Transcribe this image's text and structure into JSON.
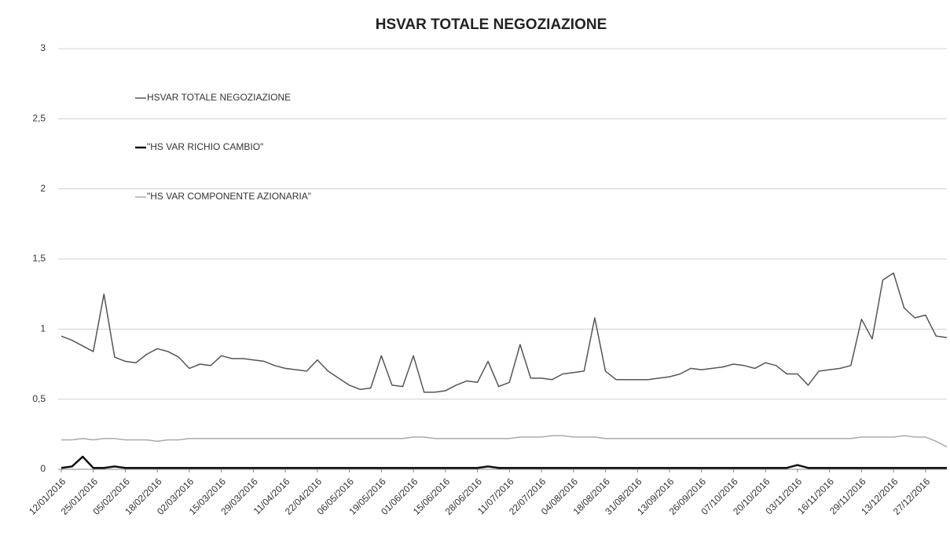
{
  "chart_data": {
    "type": "line",
    "title": "HSVAR TOTALE NEGOZIAZIONE",
    "categories": [
      "12/01/2016",
      null,
      null,
      "25/01/2016",
      null,
      null,
      "05/02/2016",
      null,
      null,
      "18/02/2016",
      null,
      null,
      "02/03/2016",
      null,
      null,
      "15/03/2016",
      null,
      null,
      "29/03/2016",
      null,
      null,
      "11/04/2016",
      null,
      null,
      "22/04/2016",
      null,
      null,
      "06/05/2016",
      null,
      null,
      "19/05/2016",
      null,
      null,
      "01/06/2016",
      null,
      null,
      "15/06/2016",
      null,
      null,
      "28/06/2016",
      null,
      null,
      "11/07/2016",
      null,
      null,
      "22/07/2016",
      null,
      null,
      "04/08/2016",
      null,
      null,
      "18/08/2016",
      null,
      null,
      "31/08/2016",
      null,
      null,
      "13/09/2016",
      null,
      null,
      "26/09/2016",
      null,
      null,
      "07/10/2016",
      null,
      null,
      "20/10/2016",
      null,
      null,
      "03/11/2016",
      null,
      null,
      "16/11/2016",
      null,
      null,
      "29/11/2016",
      null,
      null,
      "13/12/2016",
      null,
      null,
      "27/12/2016",
      null,
      null
    ],
    "series": [
      {
        "name": "HSVAR TOTALE NEGOZIAZIONE",
        "color": "#555555",
        "width": 1.5,
        "values": [
          0.95,
          0.92,
          0.88,
          0.84,
          1.25,
          0.8,
          0.77,
          0.76,
          0.82,
          0.86,
          0.84,
          0.8,
          0.72,
          0.75,
          0.74,
          0.81,
          0.79,
          0.79,
          0.78,
          0.77,
          0.74,
          0.72,
          0.71,
          0.7,
          0.78,
          0.7,
          0.65,
          0.6,
          0.57,
          0.58,
          0.81,
          0.6,
          0.59,
          0.81,
          0.55,
          0.55,
          0.56,
          0.6,
          0.63,
          0.62,
          0.77,
          0.59,
          0.62,
          0.89,
          0.65,
          0.65,
          0.64,
          0.68,
          0.69,
          0.7,
          1.08,
          0.7,
          0.64,
          0.64,
          0.64,
          0.64,
          0.65,
          0.66,
          0.68,
          0.72,
          0.71,
          0.72,
          0.73,
          0.75,
          0.74,
          0.72,
          0.76,
          0.74,
          0.68,
          0.68,
          0.6,
          0.7,
          0.71,
          0.72,
          0.74,
          1.07,
          0.93,
          1.35,
          1.4,
          1.15,
          1.08,
          1.1,
          0.95,
          0.94
        ]
      },
      {
        "name": "\"HS VAR RICHIO CAMBIO\"",
        "color": "#111111",
        "width": 2.5,
        "values": [
          0.01,
          0.02,
          0.09,
          0.01,
          0.01,
          0.02,
          0.01,
          0.01,
          0.01,
          0.01,
          0.01,
          0.01,
          0.01,
          0.01,
          0.01,
          0.01,
          0.01,
          0.01,
          0.01,
          0.01,
          0.01,
          0.01,
          0.01,
          0.01,
          0.01,
          0.01,
          0.01,
          0.01,
          0.01,
          0.01,
          0.01,
          0.01,
          0.01,
          0.01,
          0.01,
          0.01,
          0.01,
          0.01,
          0.01,
          0.01,
          0.02,
          0.01,
          0.01,
          0.01,
          0.01,
          0.01,
          0.01,
          0.01,
          0.01,
          0.01,
          0.01,
          0.01,
          0.01,
          0.01,
          0.01,
          0.01,
          0.01,
          0.01,
          0.01,
          0.01,
          0.01,
          0.01,
          0.01,
          0.01,
          0.01,
          0.01,
          0.01,
          0.01,
          0.01,
          0.03,
          0.01,
          0.01,
          0.01,
          0.01,
          0.01,
          0.01,
          0.01,
          0.01,
          0.01,
          0.01,
          0.01,
          0.01,
          0.01,
          0.01
        ]
      },
      {
        "name": "\"HS VAR COMPONENTE AZIONARIA\"",
        "color": "#aaaaaa",
        "width": 1.5,
        "values": [
          0.21,
          0.21,
          0.22,
          0.21,
          0.22,
          0.22,
          0.21,
          0.21,
          0.21,
          0.2,
          0.21,
          0.21,
          0.22,
          0.22,
          0.22,
          0.22,
          0.22,
          0.22,
          0.22,
          0.22,
          0.22,
          0.22,
          0.22,
          0.22,
          0.22,
          0.22,
          0.22,
          0.22,
          0.22,
          0.22,
          0.22,
          0.22,
          0.22,
          0.23,
          0.23,
          0.22,
          0.22,
          0.22,
          0.22,
          0.22,
          0.22,
          0.22,
          0.22,
          0.23,
          0.23,
          0.23,
          0.24,
          0.24,
          0.23,
          0.23,
          0.23,
          0.22,
          0.22,
          0.22,
          0.22,
          0.22,
          0.22,
          0.22,
          0.22,
          0.22,
          0.22,
          0.22,
          0.22,
          0.22,
          0.22,
          0.22,
          0.22,
          0.22,
          0.22,
          0.22,
          0.22,
          0.22,
          0.22,
          0.22,
          0.22,
          0.23,
          0.23,
          0.23,
          0.23,
          0.24,
          0.23,
          0.23,
          0.2,
          0.16
        ]
      }
    ],
    "ylim": [
      0,
      3
    ],
    "yticks": [
      0,
      {
        "value": 0.5,
        "label": "0,5"
      },
      1,
      {
        "value": 1.5,
        "label": "1,5"
      },
      2,
      {
        "value": 2.5,
        "label": "2,5"
      },
      3
    ],
    "grid": true,
    "legend": "upper left"
  }
}
